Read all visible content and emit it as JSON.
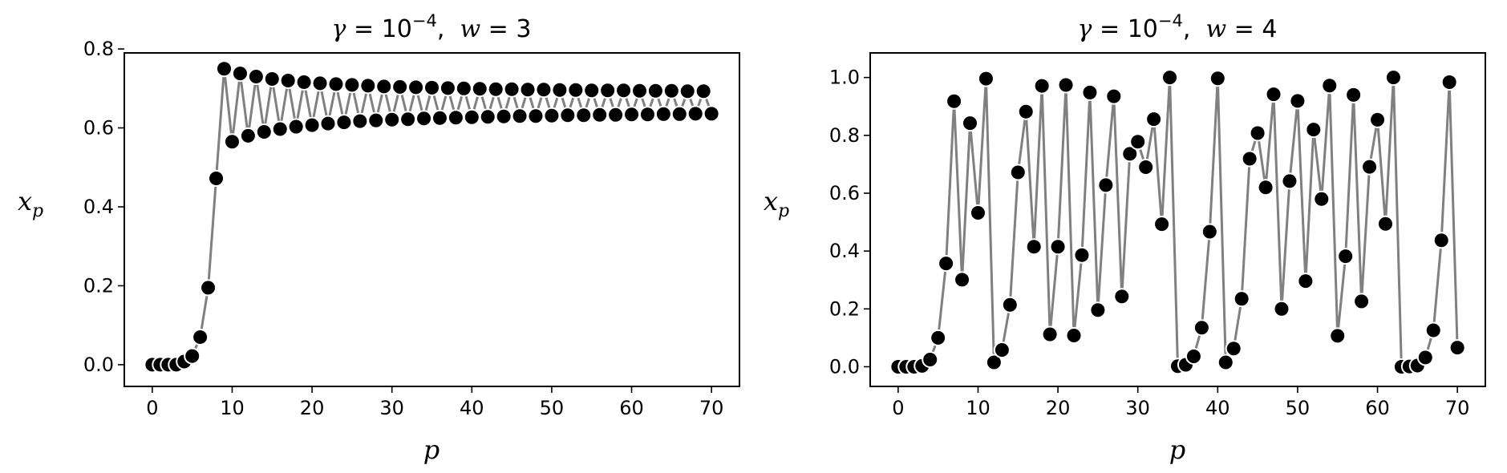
{
  "chart_data": [
    {
      "type": "line",
      "title": {
        "greek": "γ",
        "eq": " = 10",
        "exp": "−4",
        "sep": ",  ",
        "var": "w",
        "eq2": " = 3"
      },
      "xlabel": "p",
      "ylabel": {
        "base": "x",
        "sub": "p"
      },
      "xlim": [
        -3.5,
        73.5
      ],
      "ylim": [
        -0.055,
        0.79
      ],
      "xticks": [
        0,
        10,
        20,
        30,
        40,
        50,
        60,
        70
      ],
      "xtick_labels": [
        "0",
        "10",
        "20",
        "30",
        "40",
        "50",
        "60",
        "70"
      ],
      "yticks": [
        0.0,
        0.2,
        0.4,
        0.6,
        0.8
      ],
      "ytick_labels": [
        "0.0",
        "0.2",
        "0.4",
        "0.6",
        "0.8"
      ],
      "grid": false,
      "line_color": "#808080",
      "marker_color": "#000000",
      "x": [
        0,
        1,
        2,
        3,
        4,
        5,
        6,
        7,
        8,
        9,
        10,
        11,
        12,
        13,
        14,
        15,
        16,
        17,
        18,
        19,
        20,
        21,
        22,
        23,
        24,
        25,
        26,
        27,
        28,
        29,
        30,
        31,
        32,
        33,
        34,
        35,
        36,
        37,
        38,
        39,
        40,
        41,
        42,
        43,
        44,
        45,
        46,
        47,
        48,
        49,
        50,
        51,
        52,
        53,
        54,
        55,
        56,
        57,
        58,
        59,
        60,
        61,
        62,
        63,
        64,
        65,
        66,
        67,
        68,
        69,
        70
      ],
      "y": [
        0.0,
        0.0,
        0.0,
        0.0,
        0.008,
        0.022,
        0.07,
        0.195,
        0.472,
        0.75,
        0.565,
        0.738,
        0.58,
        0.73,
        0.59,
        0.724,
        0.597,
        0.72,
        0.603,
        0.716,
        0.607,
        0.713,
        0.611,
        0.711,
        0.614,
        0.709,
        0.617,
        0.707,
        0.619,
        0.705,
        0.621,
        0.704,
        0.622,
        0.703,
        0.624,
        0.702,
        0.625,
        0.701,
        0.626,
        0.7,
        0.627,
        0.699,
        0.628,
        0.698,
        0.629,
        0.698,
        0.63,
        0.697,
        0.63,
        0.697,
        0.631,
        0.696,
        0.632,
        0.696,
        0.632,
        0.695,
        0.633,
        0.695,
        0.633,
        0.695,
        0.634,
        0.694,
        0.634,
        0.694,
        0.635,
        0.694,
        0.635,
        0.693,
        0.636,
        0.693,
        0.636
      ]
    },
    {
      "type": "line",
      "title": {
        "greek": "γ",
        "eq": " = 10",
        "exp": "−4",
        "sep": ",  ",
        "var": "w",
        "eq2": " = 4"
      },
      "xlabel": "p",
      "ylabel": {
        "base": "x",
        "sub": "p"
      },
      "xlim": [
        -3.5,
        73.5
      ],
      "ylim": [
        -0.068,
        1.085
      ],
      "xticks": [
        0,
        10,
        20,
        30,
        40,
        50,
        60,
        70
      ],
      "xtick_labels": [
        "0",
        "10",
        "20",
        "30",
        "40",
        "50",
        "60",
        "70"
      ],
      "yticks": [
        0.0,
        0.2,
        0.4,
        0.6,
        0.8,
        1.0
      ],
      "ytick_labels": [
        "0.0",
        "0.2",
        "0.4",
        "0.6",
        "0.8",
        "1.0"
      ],
      "grid": false,
      "line_color": "#808080",
      "marker_color": "#000000",
      "x": [
        0,
        1,
        2,
        3,
        4,
        5,
        6,
        7,
        8,
        9,
        10,
        11,
        12,
        13,
        14,
        15,
        16,
        17,
        18,
        19,
        20,
        21,
        22,
        23,
        24,
        25,
        26,
        27,
        28,
        29,
        30,
        31,
        32,
        33,
        34,
        35,
        36,
        37,
        38,
        39,
        40,
        41,
        42,
        43,
        44,
        45,
        46,
        47,
        48,
        49,
        50,
        51,
        52,
        53,
        54,
        55,
        56,
        57,
        58,
        59,
        60,
        61,
        62,
        63,
        64,
        65,
        66,
        67,
        68,
        69,
        70
      ],
      "y": [
        0.0,
        0.0,
        0.0,
        0.003,
        0.025,
        0.1,
        0.357,
        0.918,
        0.301,
        0.842,
        0.532,
        0.996,
        0.015,
        0.058,
        0.214,
        0.672,
        0.882,
        0.415,
        0.971,
        0.112,
        0.415,
        0.974,
        0.108,
        0.386,
        0.948,
        0.196,
        0.628,
        0.935,
        0.243,
        0.736,
        0.778,
        0.69,
        0.856,
        0.493,
        1.0,
        0.002,
        0.007,
        0.036,
        0.135,
        0.467,
        0.997,
        0.015,
        0.063,
        0.235,
        0.719,
        0.808,
        0.62,
        0.942,
        0.2,
        0.642,
        0.919,
        0.296,
        0.82,
        0.58,
        0.972,
        0.107,
        0.382,
        0.94,
        0.226,
        0.691,
        0.854,
        0.494,
        1.0,
        0.0,
        0.001,
        0.004,
        0.032,
        0.126,
        0.437,
        0.984,
        0.066
      ]
    }
  ]
}
